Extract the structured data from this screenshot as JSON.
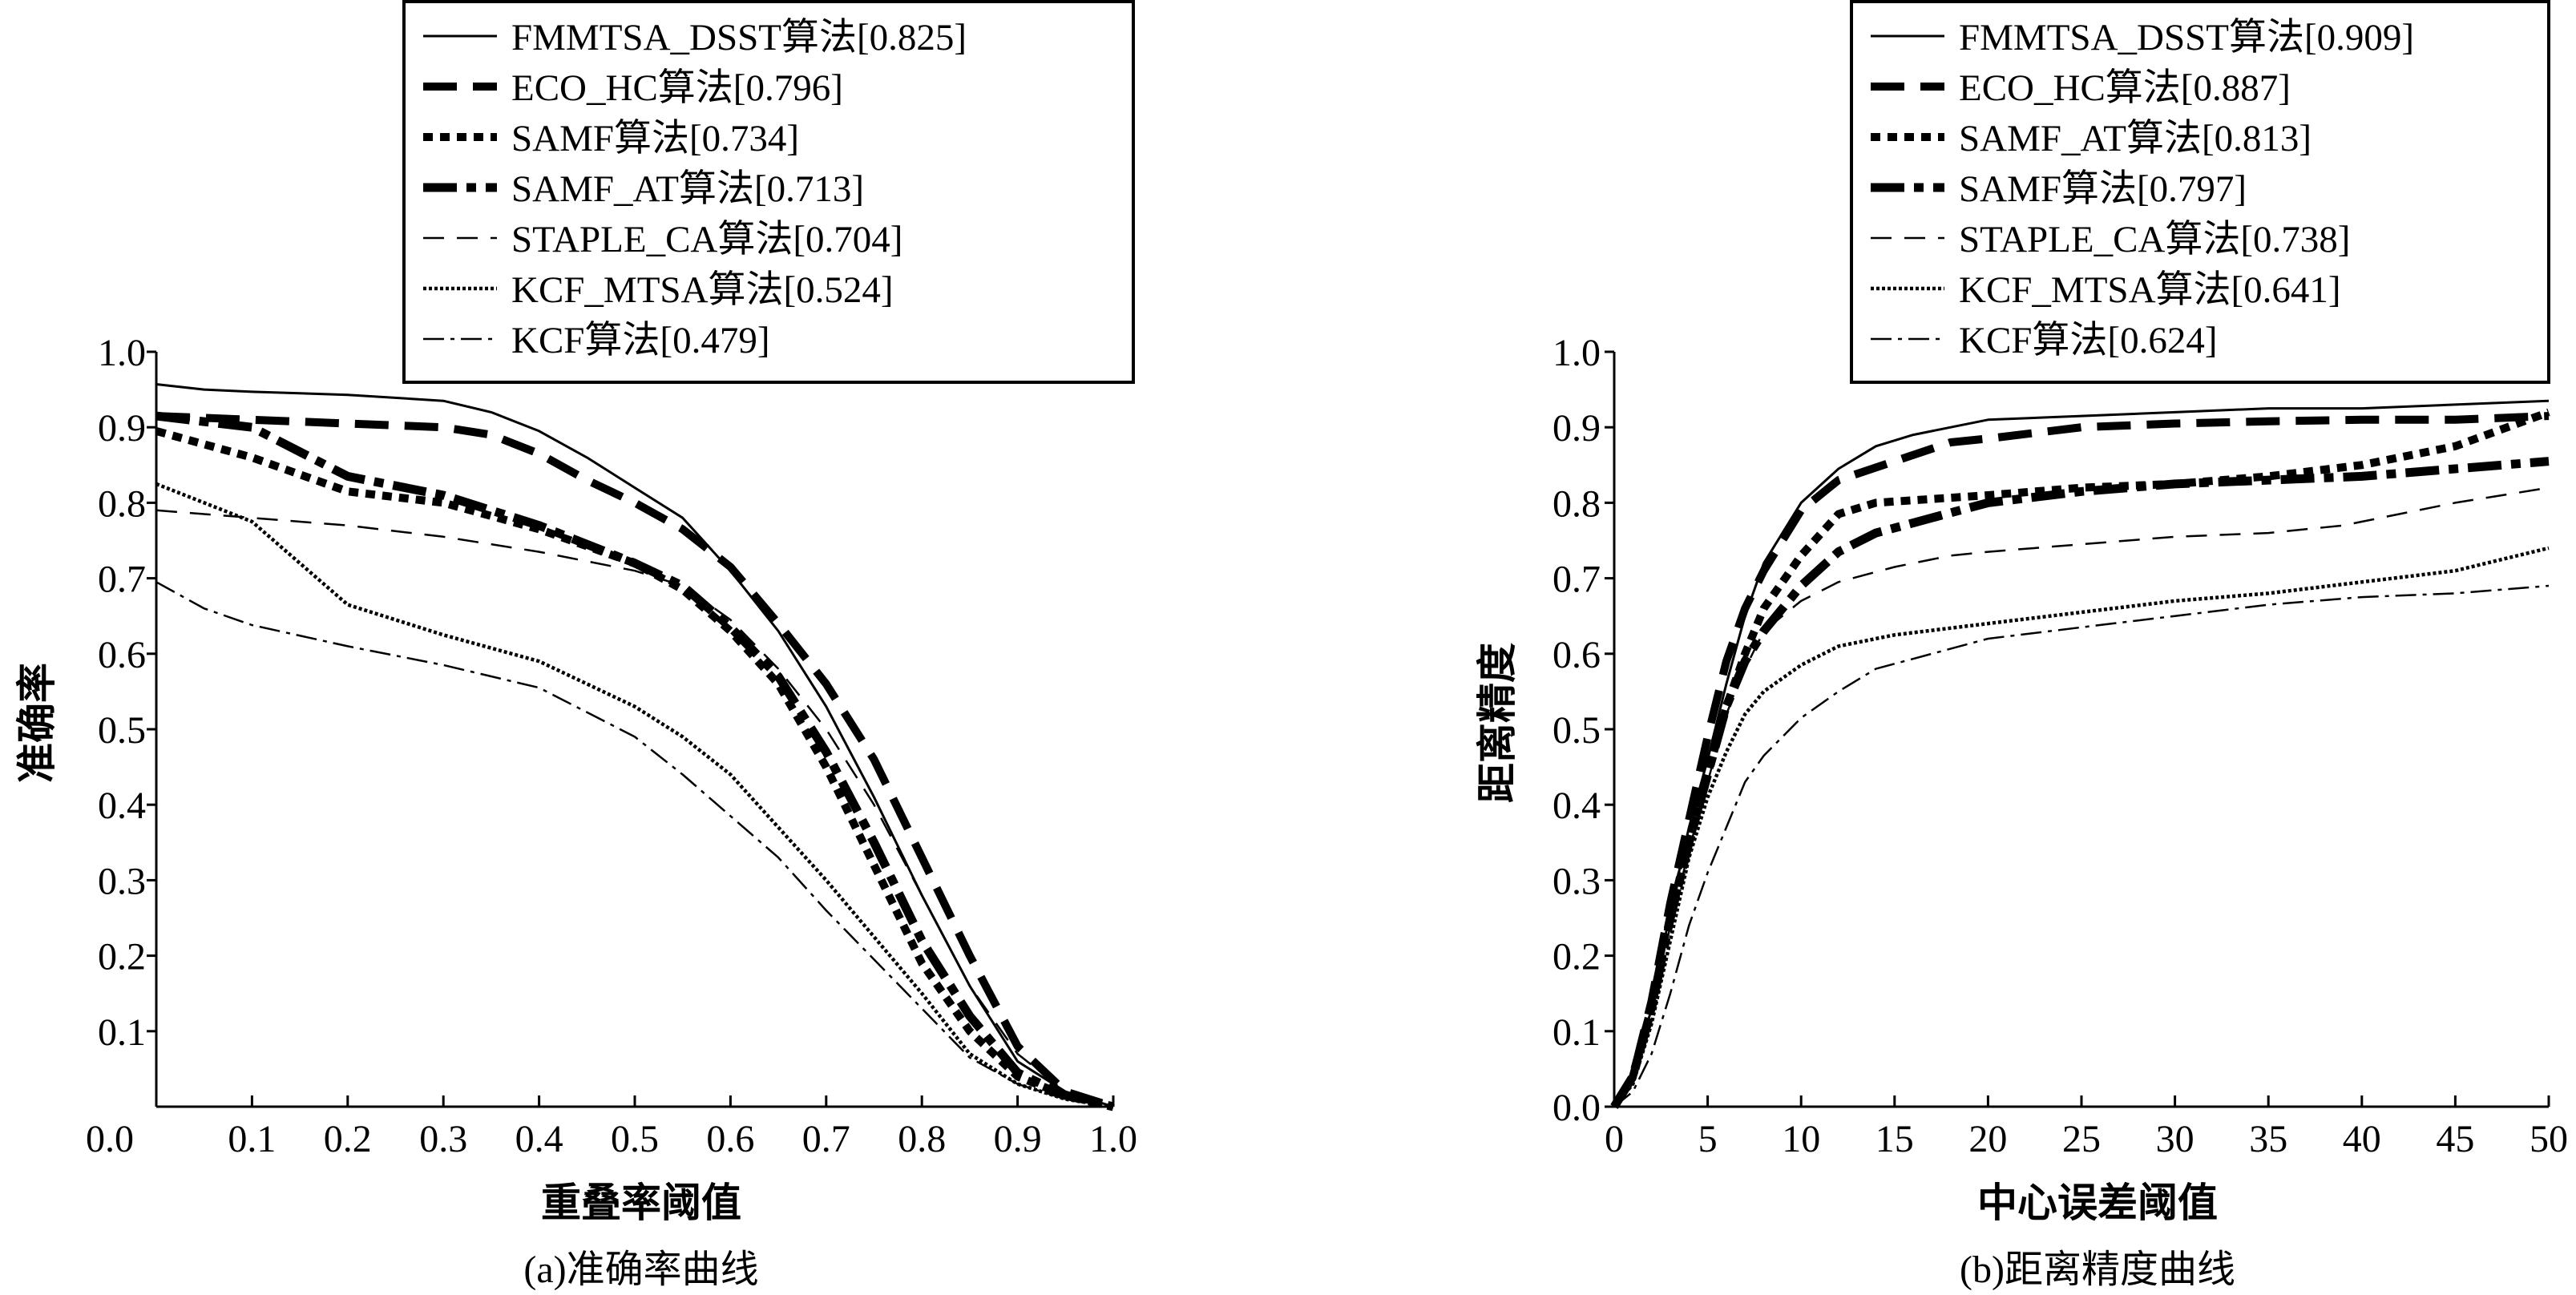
{
  "chart_data": [
    {
      "type": "line",
      "title": "(a)准确率曲线",
      "xlabel": "重叠率阈值",
      "ylabel": "准确率",
      "xlim": [
        0,
        1
      ],
      "ylim": [
        0,
        1
      ],
      "xticks": [
        "0.0",
        "0.1",
        "0.2",
        "0.3",
        "0.4",
        "0.5",
        "0.6",
        "0.7",
        "0.8",
        "0.9",
        "1.0"
      ],
      "yticks": [
        "0.1",
        "0.2",
        "0.3",
        "0.4",
        "0.5",
        "0.6",
        "0.7",
        "0.8",
        "0.9",
        "1.0"
      ],
      "grid": false,
      "legend_position": "top-right",
      "series": [
        {
          "name": "FMMTSA_DSST算法",
          "score": "0.825",
          "x": [
            0,
            0.05,
            0.1,
            0.2,
            0.3,
            0.35,
            0.4,
            0.45,
            0.5,
            0.55,
            0.6,
            0.65,
            0.7,
            0.75,
            0.8,
            0.85,
            0.9,
            0.95,
            1.0
          ],
          "y": [
            0.957,
            0.95,
            0.947,
            0.943,
            0.935,
            0.92,
            0.895,
            0.86,
            0.82,
            0.78,
            0.71,
            0.63,
            0.53,
            0.41,
            0.28,
            0.16,
            0.06,
            0.02,
            0.0
          ]
        },
        {
          "name": "ECO_HC算法",
          "score": "0.796",
          "x": [
            0,
            0.1,
            0.2,
            0.3,
            0.35,
            0.4,
            0.45,
            0.5,
            0.55,
            0.6,
            0.65,
            0.7,
            0.75,
            0.8,
            0.85,
            0.9,
            0.95,
            1.0
          ],
          "y": [
            0.915,
            0.91,
            0.905,
            0.9,
            0.89,
            0.865,
            0.83,
            0.8,
            0.765,
            0.715,
            0.64,
            0.56,
            0.46,
            0.33,
            0.2,
            0.08,
            0.02,
            0.0
          ]
        },
        {
          "name": "SAMF算法",
          "score": "0.734",
          "x": [
            0,
            0.1,
            0.2,
            0.3,
            0.4,
            0.5,
            0.55,
            0.6,
            0.65,
            0.7,
            0.75,
            0.8,
            0.85,
            0.9,
            0.95,
            1.0
          ],
          "y": [
            0.895,
            0.86,
            0.815,
            0.8,
            0.765,
            0.72,
            0.685,
            0.63,
            0.56,
            0.45,
            0.32,
            0.19,
            0.1,
            0.04,
            0.015,
            0.0
          ]
        },
        {
          "name": "SAMF_AT算法",
          "score": "0.713",
          "x": [
            0,
            0.1,
            0.2,
            0.3,
            0.4,
            0.5,
            0.55,
            0.6,
            0.65,
            0.7,
            0.75,
            0.8,
            0.85,
            0.9,
            0.95,
            1.0
          ],
          "y": [
            0.915,
            0.9,
            0.835,
            0.81,
            0.77,
            0.72,
            0.69,
            0.635,
            0.57,
            0.47,
            0.35,
            0.22,
            0.12,
            0.045,
            0.015,
            0.0
          ]
        },
        {
          "name": "STAPLE_CA算法",
          "score": "0.704",
          "x": [
            0,
            0.1,
            0.2,
            0.3,
            0.4,
            0.5,
            0.55,
            0.6,
            0.65,
            0.7,
            0.75,
            0.8,
            0.85,
            0.9,
            0.95,
            1.0
          ],
          "y": [
            0.79,
            0.78,
            0.77,
            0.755,
            0.735,
            0.71,
            0.69,
            0.645,
            0.58,
            0.5,
            0.4,
            0.28,
            0.16,
            0.07,
            0.02,
            0.0
          ]
        },
        {
          "name": "KCF_MTSA算法",
          "score": "0.524",
          "x": [
            0,
            0.05,
            0.1,
            0.15,
            0.2,
            0.3,
            0.4,
            0.5,
            0.55,
            0.6,
            0.7,
            0.8,
            0.85,
            0.9,
            0.95,
            1.0
          ],
          "y": [
            0.825,
            0.8,
            0.775,
            0.72,
            0.665,
            0.625,
            0.59,
            0.53,
            0.49,
            0.44,
            0.3,
            0.15,
            0.07,
            0.03,
            0.01,
            0.0
          ]
        },
        {
          "name": "KCF算法",
          "score": "0.479",
          "x": [
            0,
            0.05,
            0.1,
            0.2,
            0.3,
            0.4,
            0.5,
            0.55,
            0.6,
            0.65,
            0.7,
            0.8,
            0.85,
            0.9,
            0.95,
            1.0
          ],
          "y": [
            0.695,
            0.66,
            0.638,
            0.61,
            0.585,
            0.555,
            0.49,
            0.44,
            0.385,
            0.33,
            0.26,
            0.13,
            0.065,
            0.03,
            0.01,
            0.0
          ]
        }
      ]
    },
    {
      "type": "line",
      "title": "(b)距离精度曲线",
      "xlabel": "中心误差阈值",
      "ylabel": "距离精度",
      "xlim": [
        0,
        50
      ],
      "ylim": [
        0,
        1
      ],
      "xticks": [
        "0",
        "5",
        "10",
        "15",
        "20",
        "25",
        "30",
        "35",
        "40",
        "45",
        "50"
      ],
      "yticks": [
        "0.0",
        "0.1",
        "0.2",
        "0.3",
        "0.4",
        "0.5",
        "0.6",
        "0.7",
        "0.8",
        "0.9",
        "1.0"
      ],
      "grid": false,
      "legend_position": "top-right",
      "series": [
        {
          "name": "FMMTSA_DSST算法",
          "score": "0.909",
          "x": [
            0,
            1,
            2,
            3,
            4,
            5,
            6,
            7,
            8,
            10,
            12,
            14,
            16,
            18,
            20,
            25,
            30,
            35,
            40,
            45,
            50
          ],
          "y": [
            0,
            0.04,
            0.13,
            0.26,
            0.37,
            0.46,
            0.56,
            0.65,
            0.72,
            0.8,
            0.845,
            0.875,
            0.89,
            0.9,
            0.91,
            0.915,
            0.92,
            0.925,
            0.925,
            0.93,
            0.935
          ]
        },
        {
          "name": "ECO_HC算法",
          "score": "0.887",
          "x": [
            0,
            1,
            2,
            3,
            4,
            5,
            6,
            7,
            8,
            10,
            12,
            15,
            18,
            20,
            25,
            30,
            35,
            40,
            45,
            50
          ],
          "y": [
            0,
            0.04,
            0.14,
            0.27,
            0.38,
            0.49,
            0.59,
            0.66,
            0.71,
            0.79,
            0.83,
            0.855,
            0.88,
            0.885,
            0.9,
            0.905,
            0.908,
            0.91,
            0.91,
            0.915
          ]
        },
        {
          "name": "SAMF_AT算法",
          "score": "0.813",
          "x": [
            0,
            1,
            2,
            3,
            4,
            5,
            6,
            7,
            8,
            10,
            12,
            14,
            17,
            20,
            25,
            30,
            35,
            40,
            45,
            50
          ],
          "y": [
            0,
            0.04,
            0.13,
            0.25,
            0.35,
            0.44,
            0.53,
            0.6,
            0.66,
            0.73,
            0.785,
            0.8,
            0.805,
            0.81,
            0.82,
            0.825,
            0.835,
            0.85,
            0.875,
            0.92
          ]
        },
        {
          "name": "SAMF算法",
          "score": "0.797",
          "x": [
            0,
            1,
            2,
            3,
            4,
            5,
            6,
            7,
            8,
            10,
            12,
            14,
            17,
            20,
            25,
            30,
            35,
            40,
            45,
            50
          ],
          "y": [
            0,
            0.04,
            0.13,
            0.25,
            0.35,
            0.44,
            0.53,
            0.59,
            0.63,
            0.69,
            0.735,
            0.76,
            0.78,
            0.8,
            0.815,
            0.825,
            0.83,
            0.835,
            0.845,
            0.855
          ]
        },
        {
          "name": "STAPLE_CA算法",
          "score": "0.738",
          "x": [
            0,
            1,
            2,
            3,
            4,
            5,
            6,
            7,
            8,
            10,
            12,
            15,
            18,
            20,
            25,
            30,
            35,
            39,
            42,
            45,
            50
          ],
          "y": [
            0,
            0.04,
            0.12,
            0.24,
            0.34,
            0.43,
            0.52,
            0.58,
            0.63,
            0.67,
            0.695,
            0.715,
            0.73,
            0.735,
            0.745,
            0.755,
            0.76,
            0.77,
            0.785,
            0.8,
            0.82
          ]
        },
        {
          "name": "KCF_MTSA算法",
          "score": "0.641",
          "x": [
            0,
            1,
            2,
            3,
            4,
            5,
            6,
            7,
            8,
            10,
            12,
            15,
            20,
            25,
            30,
            35,
            40,
            45,
            50
          ],
          "y": [
            0,
            0.03,
            0.11,
            0.22,
            0.33,
            0.41,
            0.47,
            0.52,
            0.55,
            0.585,
            0.61,
            0.625,
            0.64,
            0.655,
            0.67,
            0.68,
            0.695,
            0.71,
            0.74
          ]
        },
        {
          "name": "KCF算法",
          "score": "0.624",
          "x": [
            0,
            1,
            2,
            3,
            4,
            5,
            6,
            7,
            8,
            10,
            12,
            14,
            17,
            20,
            25,
            30,
            35,
            40,
            45,
            50
          ],
          "y": [
            0,
            0.02,
            0.07,
            0.15,
            0.24,
            0.31,
            0.37,
            0.43,
            0.465,
            0.515,
            0.55,
            0.58,
            0.6,
            0.62,
            0.635,
            0.65,
            0.665,
            0.675,
            0.68,
            0.69
          ]
        }
      ]
    }
  ],
  "styles": {
    "line_color": "#000000",
    "background": "#ffffff"
  }
}
